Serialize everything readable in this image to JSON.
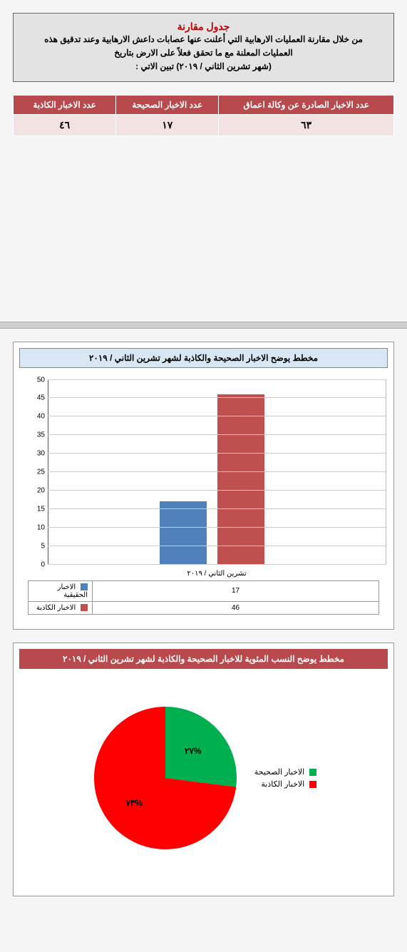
{
  "header_box": {
    "title": "جدول مقارنة",
    "line1": "من خلال مقارنة العمليات الارهابية التي أعلنت عنها عصابات  داعش الارهابية وعند تدقيق هذه",
    "line2": "العمليات المعلنة مع ما تحقق فعلاً على الارض بتاريخ",
    "line3": "(شهر تشرين الثاني / ٢٠١٩) تبين الاتي :"
  },
  "table": {
    "header_bg": "#b84a4e",
    "cols": [
      {
        "label": "عدد الاخبار الصادرة عن وكالة اعماق",
        "width": "46%"
      },
      {
        "label": "عدد الاخبار الصحيحة",
        "width": "27%"
      },
      {
        "label": "عدد الاخبار الكاذبة",
        "width": "27%"
      }
    ],
    "row": [
      "٦٣",
      "١٧",
      "٤٦"
    ]
  },
  "bar_chart": {
    "title": "مخطط يوضح الاخبار الصحيحة والكاذبة لشهر تشرين الثاني / ٢٠١٩",
    "title_bg": "#d9e7f5",
    "xlabel": "تشرين الثاني / ٢٠١٩",
    "ymax": 50,
    "ystep": 5,
    "grid_color": "#cccccc",
    "series": [
      {
        "name": "الاخبار الحقيقية",
        "value": 17,
        "color": "#4f81bd",
        "left_pct": 33,
        "width_pct": 14
      },
      {
        "name": "الاخبار الكاذبة",
        "value": 46,
        "color": "#c0504d",
        "left_pct": 50,
        "width_pct": 14
      }
    ]
  },
  "pie_chart": {
    "title": "مخطط يوضح النسب المئوية للاخبار الصحيحة والكاذبة لشهر تشرين الثاني / ٢٠١٩",
    "title_bg": "#b84a4e",
    "title_color": "#ffffff",
    "slices": [
      {
        "name": "الاخبار الصحيحة",
        "pct": 27,
        "label": "%٢٧",
        "color": "#00b050"
      },
      {
        "name": "الاخبار الكاذبة",
        "pct": 73,
        "label": "%٧٣",
        "color": "#ff0000"
      }
    ],
    "start_angle_deg": 0
  }
}
